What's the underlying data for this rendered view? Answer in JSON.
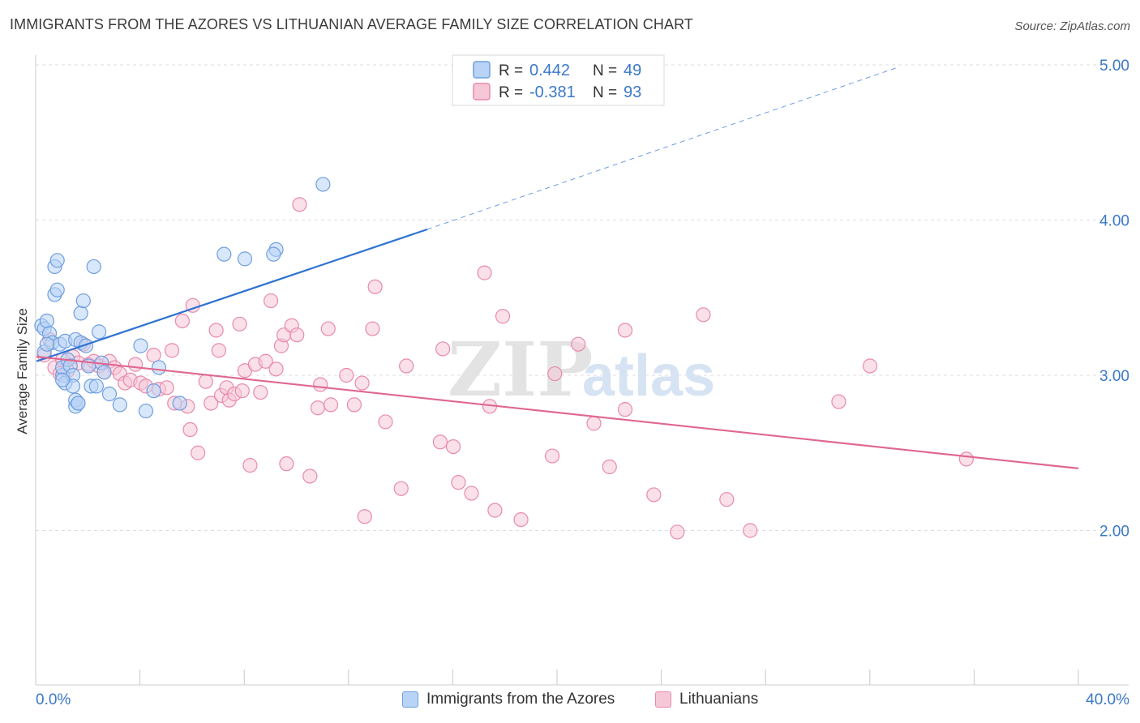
{
  "title": "IMMIGRANTS FROM THE AZORES VS LITHUANIAN AVERAGE FAMILY SIZE CORRELATION CHART",
  "source": "Source: ZipAtlas.com",
  "watermark": {
    "zip": "ZIP",
    "atlas": "atlas"
  },
  "colors": {
    "blue_fill": "#b8d3f5",
    "blue_stroke": "#6f9fe0",
    "blue_line": "#2e72d2",
    "pink_fill": "#f6c7d7",
    "pink_stroke": "#e98aab",
    "pink_line": "#e0678f",
    "value_text": "#3a78c9",
    "grid": "#dddddd"
  },
  "legend": {
    "rows": [
      {
        "r_label": "R =",
        "r_value": "0.442",
        "n_label": "N =",
        "n_value": "49"
      },
      {
        "r_label": "R =",
        "r_value": "-0.381",
        "n_label": "N =",
        "n_value": "93"
      }
    ]
  },
  "bottom_legend": [
    "Immigrants from the Azores",
    "Lithuanians"
  ],
  "chart_data": {
    "type": "scatter",
    "title": "IMMIGRANTS FROM THE AZORES VS LITHUANIAN AVERAGE FAMILY SIZE CORRELATION CHART",
    "xlabel": "",
    "ylabel": "Average Family Size",
    "xlim": [
      0,
      40
    ],
    "ylim": [
      1.0,
      5.0
    ],
    "x_tick_labels": [
      "0.0%",
      "40.0%"
    ],
    "y_ticks": [
      2.0,
      3.0,
      4.0,
      5.0
    ],
    "y_tick_labels": [
      "2.00",
      "3.00",
      "4.00",
      "5.00"
    ],
    "grid": true,
    "legend_placement": "top-center",
    "series": [
      {
        "name": "Immigrants from the Azores",
        "r": 0.442,
        "n": 49,
        "trend": {
          "x0": 0.0,
          "y0": 3.09,
          "x1": 15.0,
          "y1": 3.94,
          "dashed_to_x": 33.0,
          "dashed_to_y": 4.98
        },
        "points": [
          [
            0.2,
            3.32
          ],
          [
            0.3,
            3.3
          ],
          [
            0.4,
            3.35
          ],
          [
            0.3,
            3.15
          ],
          [
            0.5,
            3.27
          ],
          [
            0.6,
            3.21
          ],
          [
            0.7,
            3.52
          ],
          [
            0.8,
            3.55
          ],
          [
            0.7,
            3.7
          ],
          [
            0.8,
            3.74
          ],
          [
            0.9,
            3.2
          ],
          [
            1.0,
            3.0
          ],
          [
            1.0,
            3.05
          ],
          [
            1.1,
            2.95
          ],
          [
            1.2,
            3.1
          ],
          [
            1.1,
            3.22
          ],
          [
            1.3,
            3.06
          ],
          [
            1.4,
            3.0
          ],
          [
            1.5,
            2.8
          ],
          [
            1.4,
            2.93
          ],
          [
            1.5,
            2.84
          ],
          [
            1.6,
            2.82
          ],
          [
            1.6,
            2.82
          ],
          [
            1.5,
            3.23
          ],
          [
            1.7,
            3.21
          ],
          [
            1.7,
            3.4
          ],
          [
            1.8,
            3.48
          ],
          [
            1.9,
            3.19
          ],
          [
            2.0,
            3.06
          ],
          [
            2.1,
            2.93
          ],
          [
            2.2,
            3.7
          ],
          [
            2.3,
            2.93
          ],
          [
            2.4,
            3.28
          ],
          [
            2.5,
            3.08
          ],
          [
            2.6,
            3.02
          ],
          [
            2.8,
            2.88
          ],
          [
            3.2,
            2.81
          ],
          [
            4.0,
            3.19
          ],
          [
            4.2,
            2.77
          ],
          [
            4.5,
            2.9
          ],
          [
            4.7,
            3.05
          ],
          [
            5.5,
            2.82
          ],
          [
            7.2,
            3.78
          ],
          [
            8.0,
            3.75
          ],
          [
            9.2,
            3.81
          ],
          [
            9.1,
            3.78
          ],
          [
            11.0,
            4.23
          ],
          [
            0.4,
            3.2
          ],
          [
            1.0,
            2.97
          ]
        ]
      },
      {
        "name": "Lithuanians",
        "r": -0.381,
        "n": 93,
        "trend": {
          "x0": 0.0,
          "y0": 3.12,
          "x1": 40.0,
          "y1": 2.4
        },
        "points": [
          [
            0.3,
            3.13
          ],
          [
            0.5,
            3.23
          ],
          [
            0.7,
            3.05
          ],
          [
            0.9,
            3.01
          ],
          [
            1.0,
            3.1
          ],
          [
            1.2,
            3.03
          ],
          [
            1.4,
            3.12
          ],
          [
            1.6,
            3.08
          ],
          [
            1.8,
            3.2
          ],
          [
            2.0,
            3.07
          ],
          [
            2.2,
            3.09
          ],
          [
            2.4,
            3.06
          ],
          [
            2.6,
            3.02
          ],
          [
            2.8,
            3.09
          ],
          [
            3.0,
            3.05
          ],
          [
            3.2,
            3.01
          ],
          [
            3.4,
            2.95
          ],
          [
            3.6,
            2.97
          ],
          [
            3.8,
            3.07
          ],
          [
            4.0,
            2.95
          ],
          [
            4.2,
            2.93
          ],
          [
            4.5,
            3.13
          ],
          [
            4.7,
            2.91
          ],
          [
            5.0,
            2.92
          ],
          [
            5.2,
            3.16
          ],
          [
            5.3,
            2.82
          ],
          [
            5.6,
            3.35
          ],
          [
            5.8,
            2.8
          ],
          [
            5.9,
            2.65
          ],
          [
            6.0,
            3.45
          ],
          [
            6.2,
            2.5
          ],
          [
            6.5,
            2.96
          ],
          [
            6.7,
            2.82
          ],
          [
            6.9,
            3.29
          ],
          [
            7.1,
            2.87
          ],
          [
            7.0,
            3.16
          ],
          [
            7.3,
            2.92
          ],
          [
            7.4,
            2.84
          ],
          [
            7.6,
            2.88
          ],
          [
            7.8,
            3.33
          ],
          [
            7.9,
            2.9
          ],
          [
            8.0,
            3.03
          ],
          [
            8.2,
            2.42
          ],
          [
            8.4,
            3.07
          ],
          [
            8.6,
            2.89
          ],
          [
            8.8,
            3.09
          ],
          [
            9.0,
            3.48
          ],
          [
            9.2,
            3.04
          ],
          [
            9.4,
            3.19
          ],
          [
            9.5,
            3.26
          ],
          [
            9.6,
            2.43
          ],
          [
            9.8,
            3.32
          ],
          [
            10.0,
            3.26
          ],
          [
            10.1,
            4.1
          ],
          [
            10.5,
            2.35
          ],
          [
            10.8,
            2.79
          ],
          [
            10.9,
            2.94
          ],
          [
            11.2,
            3.3
          ],
          [
            11.3,
            2.81
          ],
          [
            11.9,
            3.0
          ],
          [
            12.2,
            2.81
          ],
          [
            12.5,
            2.95
          ],
          [
            12.6,
            2.09
          ],
          [
            12.9,
            3.3
          ],
          [
            13.0,
            3.57
          ],
          [
            13.4,
            2.7
          ],
          [
            14.0,
            2.27
          ],
          [
            14.2,
            3.06
          ],
          [
            15.5,
            2.57
          ],
          [
            15.6,
            3.17
          ],
          [
            16.0,
            2.54
          ],
          [
            16.2,
            2.31
          ],
          [
            16.7,
            2.24
          ],
          [
            17.2,
            3.66
          ],
          [
            17.4,
            2.8
          ],
          [
            17.6,
            2.13
          ],
          [
            17.9,
            3.38
          ],
          [
            18.6,
            2.07
          ],
          [
            19.8,
            2.48
          ],
          [
            19.9,
            3.01
          ],
          [
            20.8,
            3.2
          ],
          [
            21.4,
            2.69
          ],
          [
            22.0,
            2.41
          ],
          [
            22.6,
            2.78
          ],
          [
            22.6,
            3.29
          ],
          [
            23.7,
            2.23
          ],
          [
            24.6,
            1.99
          ],
          [
            25.6,
            3.39
          ],
          [
            26.5,
            2.2
          ],
          [
            27.4,
            2.0
          ],
          [
            30.8,
            2.83
          ],
          [
            32.0,
            3.06
          ],
          [
            35.7,
            2.46
          ]
        ]
      }
    ]
  }
}
